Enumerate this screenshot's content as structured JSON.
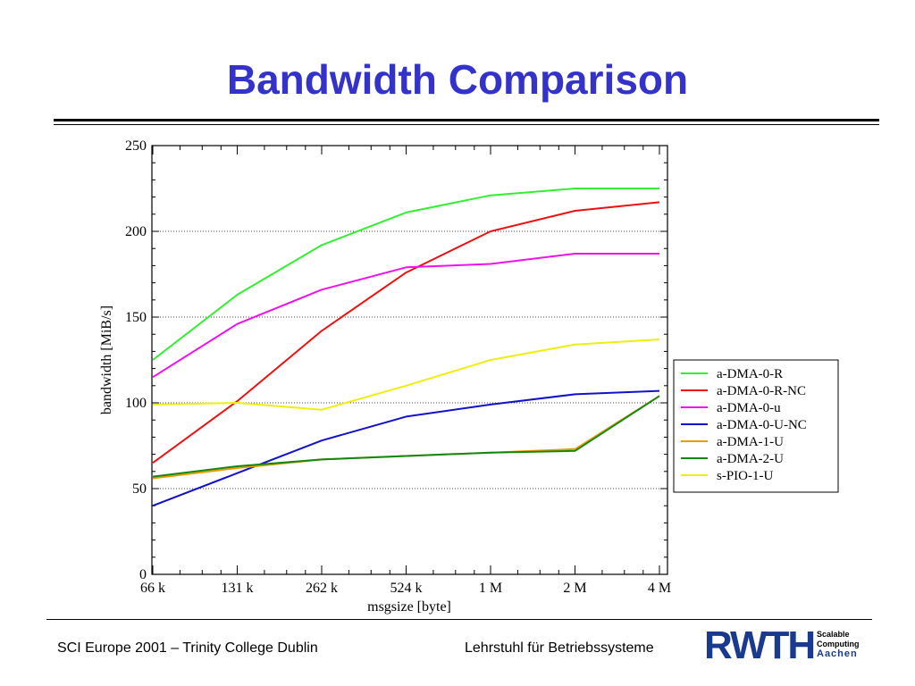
{
  "slide": {
    "title": "Bandwidth Comparison",
    "footer_left": "SCI Europe 2001 – Trinity College Dublin",
    "footer_right": "Lehrstuhl für Betriebssysteme",
    "logo": {
      "word": "RWTH",
      "lines": [
        "Scalable",
        "Computing",
        "Aachen"
      ],
      "color": "#1a3a8f"
    }
  },
  "chart_data": {
    "type": "line",
    "xlabel": "msgsize [byte]",
    "ylabel": "bandwidth [MiB/s]",
    "categories": [
      "66 k",
      "131 k",
      "262 k",
      "524 k",
      "1 M",
      "2 M",
      "4 M"
    ],
    "ylim": [
      0,
      250
    ],
    "yticks": [
      0,
      50,
      100,
      150,
      200,
      250
    ],
    "grid": "horizontal dotted",
    "legend_position": "right",
    "series": [
      {
        "name": "a-DMA-0-R",
        "color": "#33ee33",
        "values": [
          125,
          163,
          192,
          211,
          221,
          225,
          225
        ]
      },
      {
        "name": "a-DMA-0-R-NC",
        "color": "#ee1111",
        "values": [
          65,
          101,
          142,
          176,
          200,
          212,
          217
        ]
      },
      {
        "name": "a-DMA-0-u",
        "color": "#ee11ee",
        "values": [
          115,
          146,
          166,
          179,
          181,
          187,
          187
        ]
      },
      {
        "name": "a-DMA-0-U-NC",
        "color": "#1111cc",
        "values": [
          40,
          59,
          78,
          92,
          99,
          105,
          107
        ]
      },
      {
        "name": "a-DMA-1-U",
        "color": "#ee9900",
        "values": [
          56,
          62,
          67,
          69,
          71,
          73,
          104
        ]
      },
      {
        "name": "a-DMA-2-U",
        "color": "#118811",
        "values": [
          57,
          63,
          67,
          69,
          71,
          72,
          104
        ]
      },
      {
        "name": "s-PIO-1-U",
        "color": "#eeee11",
        "values": [
          99,
          100,
          96,
          110,
          125,
          134,
          137
        ]
      }
    ]
  }
}
